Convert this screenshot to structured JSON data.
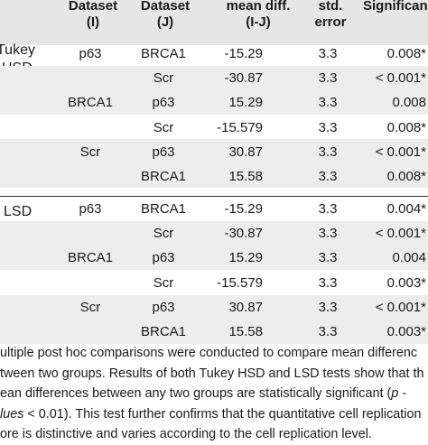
{
  "header": {
    "col_i_line1": "Dataset",
    "col_i_line2": "(I)",
    "col_j_line1": "Dataset",
    "col_j_line2": "(J)",
    "mean_line1": "mean diff.",
    "mean_line2": "(I-J)",
    "se_line1": "std.",
    "se_line2": "error",
    "sig_line1": "Significan"
  },
  "tukey_label_line1": "Tukey",
  "tukey_label_line2": "HSD",
  "lsd_label": "LSD",
  "tukey_rows": [
    {
      "i": "p63",
      "j": "BRCA1",
      "mean": "-15.29",
      "se": "3.3",
      "sig": "0.008*"
    },
    {
      "i": "",
      "j": "Scr",
      "mean": "-30.87",
      "se": "3.3",
      "sig": "< 0.001*"
    },
    {
      "i": "BRCA1",
      "j": "p63",
      "mean": "15.29",
      "se": "3.3",
      "sig": "0.008"
    },
    {
      "i": "",
      "j": "Scr",
      "mean": "-15.579",
      "se": "3.3",
      "sig": "0.008*"
    },
    {
      "i": "Scr",
      "j": "p63",
      "mean": "30.87",
      "se": "3.3",
      "sig": "< 0.001*"
    },
    {
      "i": "",
      "j": "BRCA1",
      "mean": "15.58",
      "se": "3.3",
      "sig": "0.008*"
    }
  ],
  "lsd_rows": [
    {
      "i": "p63",
      "j": "BRCA1",
      "mean": "-15.29",
      "se": "3.3",
      "sig": "0.004*"
    },
    {
      "i": "",
      "j": "Scr",
      "mean": "-30.87",
      "se": "3.3",
      "sig": "< 0.001*"
    },
    {
      "i": "BRCA1",
      "j": "p63",
      "mean": "15.29",
      "se": "3.3",
      "sig": "0.004"
    },
    {
      "i": "",
      "j": "Scr",
      "mean": "-15.579",
      "se": "3.3",
      "sig": "0.003*"
    },
    {
      "i": "Scr",
      "j": "p63",
      "mean": "30.87",
      "se": "3.3",
      "sig": "< 0.001*"
    },
    {
      "i": "",
      "j": "BRCA1",
      "mean": "15.58",
      "se": "3.3",
      "sig": "0.003*"
    }
  ],
  "note": {
    "line1": "ultiple post hoc comparisons were conducted to compare mean differenc",
    "line2": "tween two groups. Results of both Tukey HSD and LSD tests show that th",
    "line3_a": "ean differences between any two groups are statistically significant (",
    "line3_b": "p -",
    "line4_a": "lues",
    "line4_b": " < 0.01). This test further confirms that the quantitative cell replication",
    "line5": "ore is distinctive and varies according to the cell replication level."
  }
}
